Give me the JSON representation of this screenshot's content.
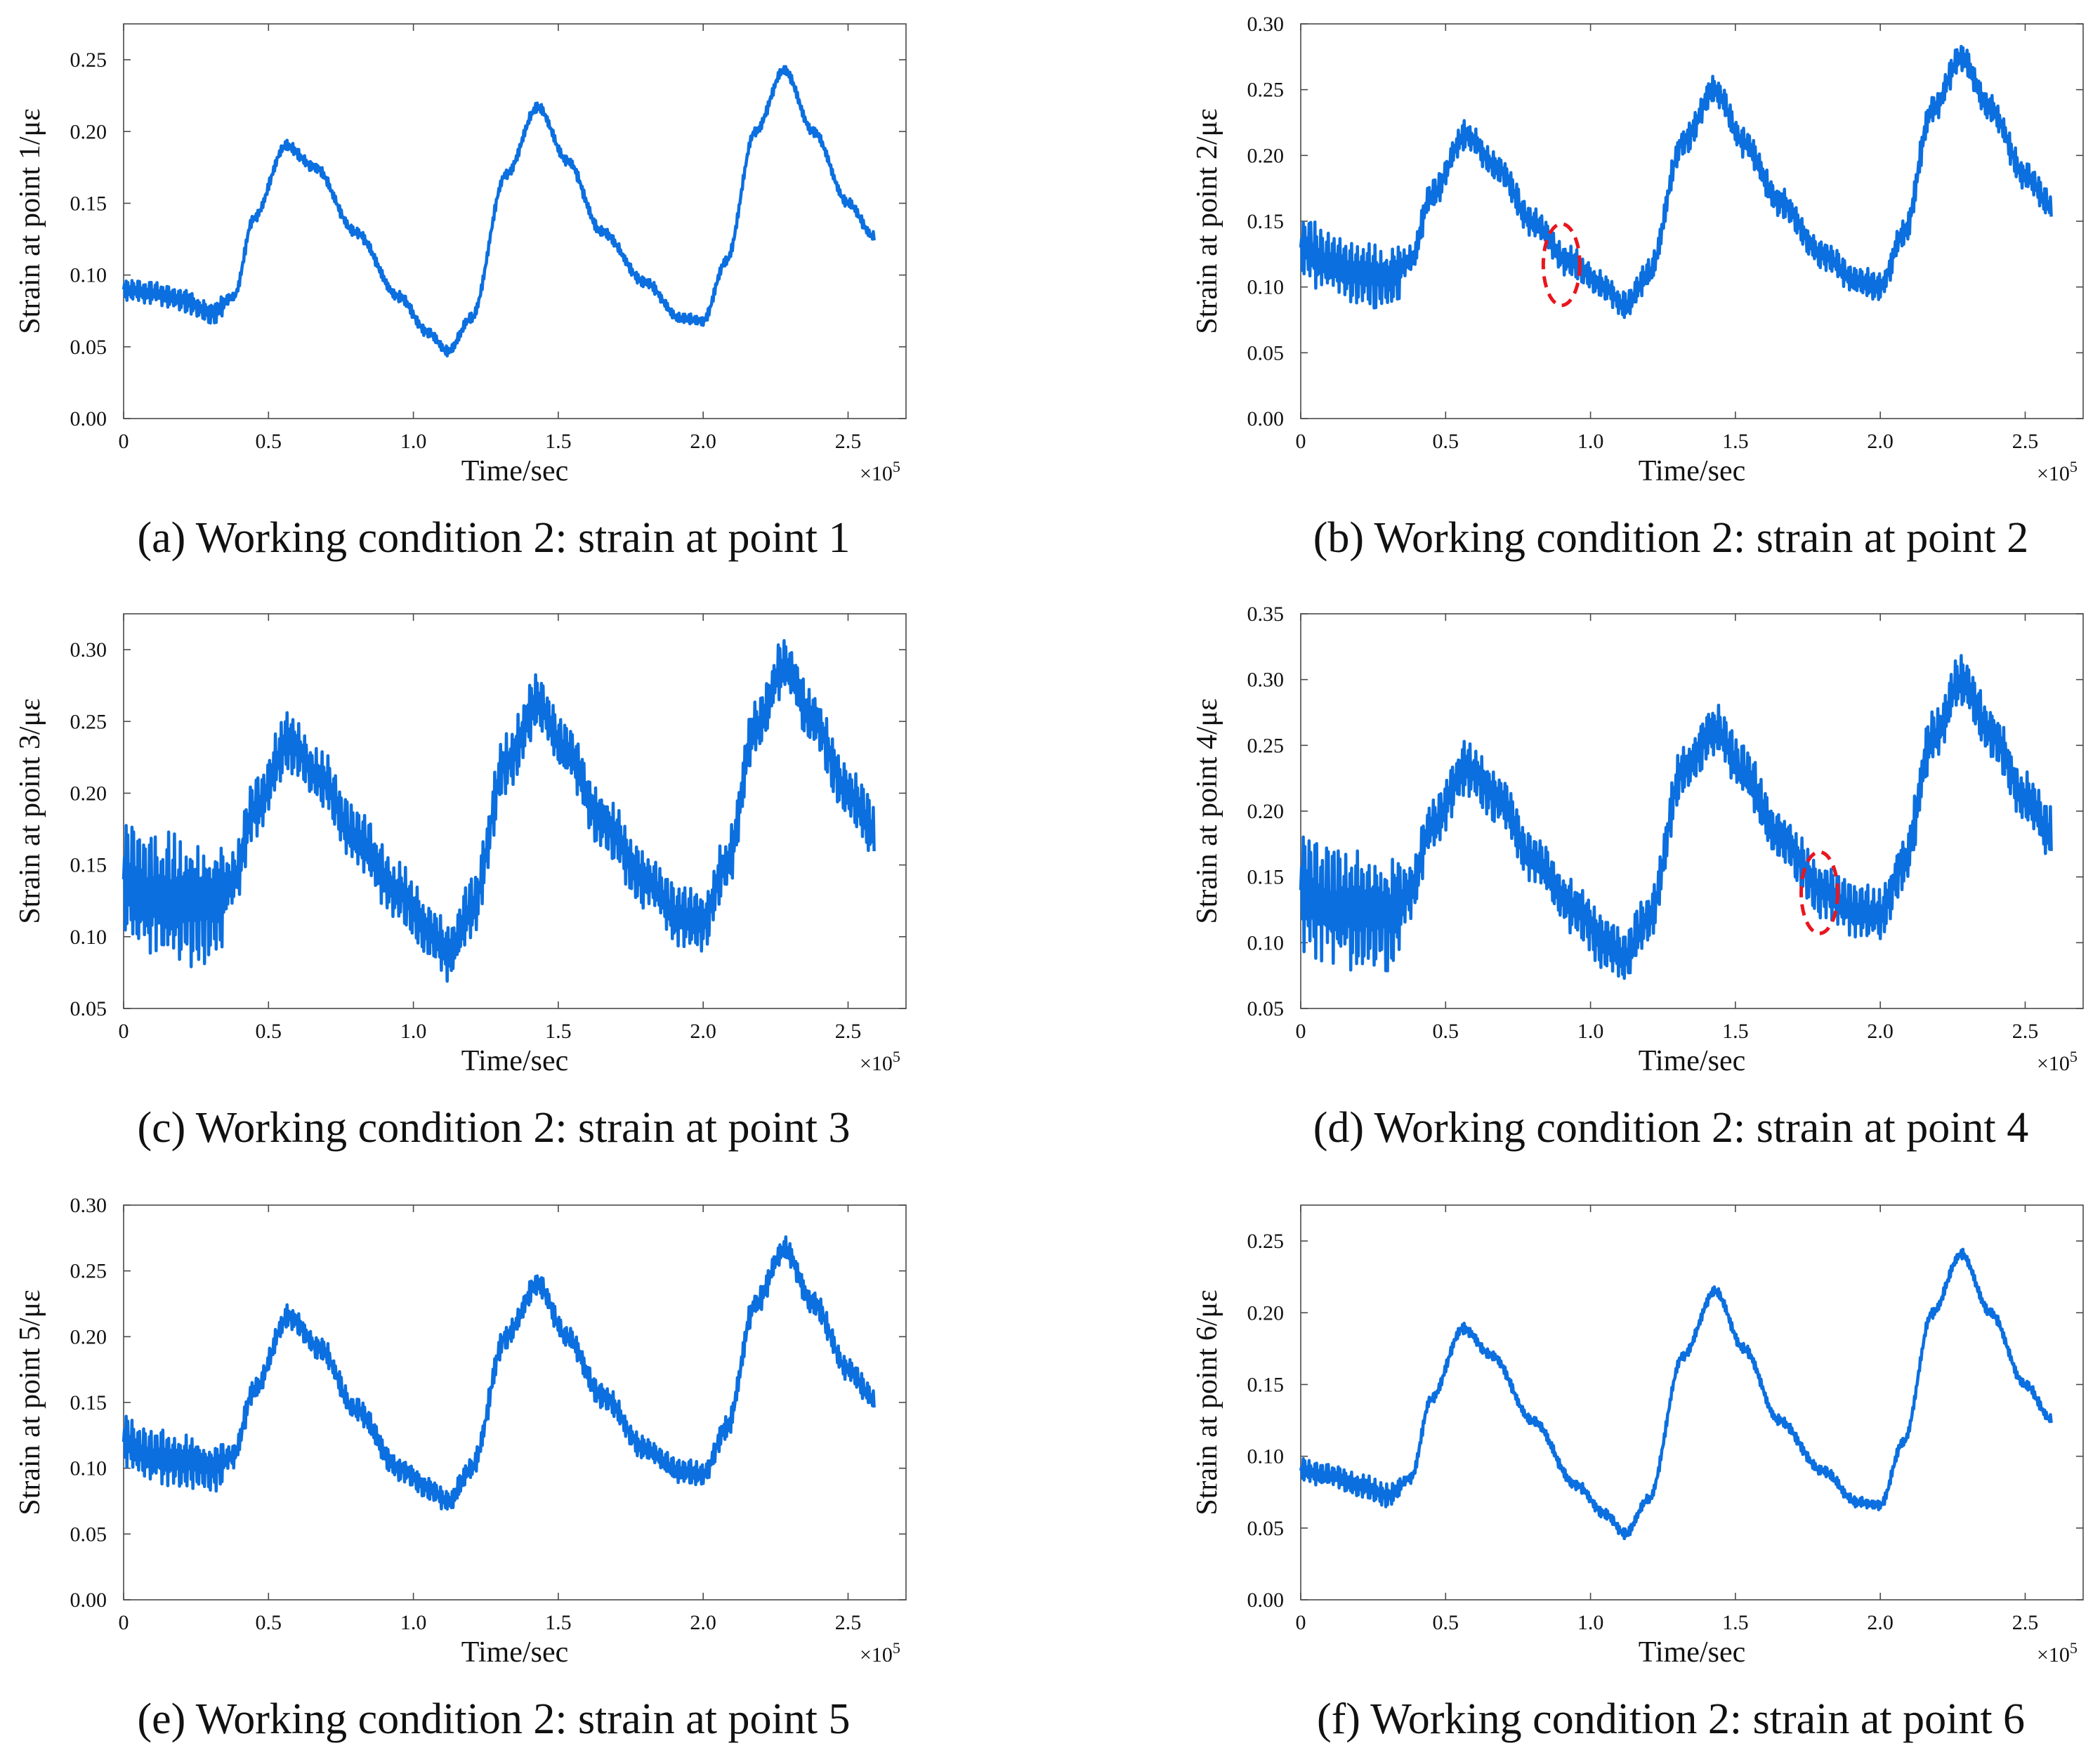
{
  "colors": {
    "series": "#0b6fe0",
    "marker": "#e8161e",
    "axis": "#4a4a4a"
  },
  "chart_data": [
    {
      "type": "line",
      "id": "a",
      "caption": "(a) Working condition 2: strain at point 1",
      "xlabel": "Time/sec",
      "ylabel": "Strain at point 1/με",
      "x_multiplier": "×10",
      "x_multiplier_exp": "5",
      "xlim": [
        0,
        2.7
      ],
      "ylim": [
        0,
        0.275
      ],
      "x_ticks": [
        0,
        0.5,
        1.0,
        1.5,
        2.0,
        2.5
      ],
      "x_tick_labels": [
        "0",
        "0.5",
        "1.0",
        "1.5",
        "2.0",
        "2.5"
      ],
      "y_ticks": [
        0,
        0.05,
        0.1,
        0.15,
        0.2,
        0.25
      ],
      "y_tick_labels": [
        "0.00",
        "0.05",
        "0.10",
        "0.15",
        "0.20",
        "0.25"
      ],
      "noise": 0.004,
      "series": [
        {
          "name": "strain at point 1",
          "x": [
            0,
            0.1,
            0.2,
            0.3,
            0.38,
            0.45,
            0.56,
            0.66,
            0.8,
            0.95,
            1.05,
            1.12,
            1.2,
            1.32,
            1.43,
            1.53,
            1.65,
            1.8,
            1.92,
            2.0,
            2.08,
            2.18,
            2.28,
            2.38,
            2.5,
            2.59
          ],
          "values": [
            0.09,
            0.088,
            0.083,
            0.073,
            0.085,
            0.14,
            0.19,
            0.175,
            0.13,
            0.085,
            0.06,
            0.047,
            0.07,
            0.17,
            0.217,
            0.18,
            0.13,
            0.095,
            0.07,
            0.068,
            0.11,
            0.2,
            0.243,
            0.2,
            0.15,
            0.127
          ]
        }
      ],
      "highlights": []
    },
    {
      "type": "line",
      "id": "b",
      "caption": "(b) Working condition 2: strain at point 2",
      "xlabel": "Time/sec",
      "ylabel": "Strain at point 2/με",
      "x_multiplier": "×10",
      "x_multiplier_exp": "5",
      "xlim": [
        0,
        2.7
      ],
      "ylim": [
        0,
        0.3
      ],
      "x_ticks": [
        0,
        0.5,
        1.0,
        1.5,
        2.0,
        2.5
      ],
      "x_tick_labels": [
        "0",
        "0.5",
        "1.0",
        "1.5",
        "2.0",
        "2.5"
      ],
      "y_ticks": [
        0,
        0.05,
        0.1,
        0.15,
        0.2,
        0.25,
        0.3
      ],
      "y_tick_labels": [
        "0.00",
        "0.05",
        "0.10",
        "0.15",
        "0.20",
        "0.25",
        "0.30"
      ],
      "noise": 0.012,
      "series": [
        {
          "name": "strain at point 2",
          "x": [
            0,
            0.1,
            0.2,
            0.3,
            0.38,
            0.45,
            0.57,
            0.68,
            0.8,
            0.92,
            1.05,
            1.12,
            1.2,
            1.32,
            1.43,
            1.53,
            1.65,
            1.8,
            1.92,
            2.0,
            2.08,
            2.18,
            2.28,
            2.38,
            2.5,
            2.59
          ],
          "values": [
            0.13,
            0.12,
            0.11,
            0.105,
            0.12,
            0.17,
            0.215,
            0.19,
            0.15,
            0.12,
            0.1,
            0.085,
            0.11,
            0.21,
            0.25,
            0.21,
            0.165,
            0.125,
            0.105,
            0.1,
            0.14,
            0.235,
            0.275,
            0.235,
            0.185,
            0.162
          ]
        }
      ],
      "highlights": [
        {
          "x": 0.9,
          "y": 0.117
        }
      ]
    },
    {
      "type": "line",
      "id": "c",
      "caption": "(c) Working condition 2: strain at point 3",
      "xlabel": "Time/sec",
      "ylabel": "Strain at point 3/με",
      "x_multiplier": "×10",
      "x_multiplier_exp": "5",
      "xlim": [
        0,
        2.7
      ],
      "ylim": [
        0.05,
        0.325
      ],
      "x_ticks": [
        0,
        0.5,
        1.0,
        1.5,
        2.0,
        2.5
      ],
      "x_tick_labels": [
        "0",
        "0.5",
        "1.0",
        "1.5",
        "2.0",
        "2.5"
      ],
      "y_ticks": [
        0.05,
        0.1,
        0.15,
        0.2,
        0.25,
        0.3
      ],
      "y_tick_labels": [
        "0.05",
        "0.10",
        "0.15",
        "0.20",
        "0.25",
        "0.30"
      ],
      "noise": 0.022,
      "series": [
        {
          "name": "strain at point 3",
          "x": [
            0,
            0.1,
            0.2,
            0.3,
            0.38,
            0.45,
            0.57,
            0.68,
            0.8,
            0.95,
            1.05,
            1.12,
            1.2,
            1.32,
            1.43,
            1.53,
            1.65,
            1.8,
            1.92,
            2.0,
            2.08,
            2.18,
            2.28,
            2.38,
            2.5,
            2.59
          ],
          "values": [
            0.14,
            0.13,
            0.125,
            0.12,
            0.14,
            0.19,
            0.235,
            0.21,
            0.17,
            0.13,
            0.105,
            0.09,
            0.12,
            0.22,
            0.262,
            0.23,
            0.18,
            0.14,
            0.115,
            0.11,
            0.15,
            0.245,
            0.29,
            0.25,
            0.2,
            0.175
          ]
        }
      ],
      "highlights": []
    },
    {
      "type": "line",
      "id": "d",
      "caption": "(d) Working condition 2: strain at point 4",
      "xlabel": "Time/sec",
      "ylabel": "Strain at point 4/με",
      "x_multiplier": "×10",
      "x_multiplier_exp": "5",
      "xlim": [
        0,
        2.7
      ],
      "ylim": [
        0.05,
        0.35
      ],
      "x_ticks": [
        0,
        0.5,
        1.0,
        1.5,
        2.0,
        2.5
      ],
      "x_tick_labels": [
        "0",
        "0.5",
        "1.0",
        "1.5",
        "2.0",
        "2.5"
      ],
      "y_ticks": [
        0.05,
        0.1,
        0.15,
        0.2,
        0.25,
        0.3,
        0.35
      ],
      "y_tick_labels": [
        "0.05",
        "0.10",
        "0.15",
        "0.20",
        "0.25",
        "0.30",
        "0.35"
      ],
      "noise": 0.022,
      "series": [
        {
          "name": "strain at point 4",
          "x": [
            0,
            0.1,
            0.2,
            0.3,
            0.38,
            0.45,
            0.57,
            0.68,
            0.8,
            0.95,
            1.05,
            1.12,
            1.2,
            1.32,
            1.43,
            1.53,
            1.65,
            1.8,
            1.92,
            2.0,
            2.08,
            2.18,
            2.28,
            2.38,
            2.5,
            2.59
          ],
          "values": [
            0.14,
            0.13,
            0.125,
            0.12,
            0.14,
            0.19,
            0.232,
            0.21,
            0.165,
            0.125,
            0.1,
            0.09,
            0.12,
            0.23,
            0.262,
            0.23,
            0.18,
            0.14,
            0.125,
            0.12,
            0.16,
            0.255,
            0.3,
            0.26,
            0.21,
            0.185
          ]
        }
      ],
      "highlights": [
        {
          "x": 1.79,
          "y": 0.138
        }
      ]
    },
    {
      "type": "line",
      "id": "e",
      "caption": "(e) Working condition 2: strain at point 5",
      "xlabel": "Time/sec",
      "ylabel": "Strain at point 5/με",
      "x_multiplier": "×10",
      "x_multiplier_exp": "5",
      "xlim": [
        0,
        2.7
      ],
      "ylim": [
        0,
        0.3
      ],
      "x_ticks": [
        0,
        0.5,
        1.0,
        1.5,
        2.0,
        2.5
      ],
      "x_tick_labels": [
        "0",
        "0.5",
        "1.0",
        "1.5",
        "2.0",
        "2.5"
      ],
      "y_ticks": [
        0,
        0.05,
        0.1,
        0.15,
        0.2,
        0.25,
        0.3
      ],
      "y_tick_labels": [
        "0.00",
        "0.05",
        "0.10",
        "0.15",
        "0.20",
        "0.25",
        "0.30"
      ],
      "noise": 0.01,
      "series": [
        {
          "name": "strain at point 5",
          "x": [
            0,
            0.1,
            0.2,
            0.3,
            0.38,
            0.45,
            0.57,
            0.68,
            0.8,
            0.95,
            1.05,
            1.12,
            1.2,
            1.32,
            1.43,
            1.53,
            1.65,
            1.8,
            1.92,
            2.0,
            2.08,
            2.18,
            2.28,
            2.38,
            2.5,
            2.59
          ],
          "values": [
            0.12,
            0.11,
            0.105,
            0.1,
            0.11,
            0.16,
            0.215,
            0.19,
            0.145,
            0.1,
            0.085,
            0.075,
            0.1,
            0.2,
            0.24,
            0.2,
            0.155,
            0.115,
            0.098,
            0.095,
            0.13,
            0.225,
            0.267,
            0.225,
            0.175,
            0.153
          ]
        }
      ],
      "highlights": []
    },
    {
      "type": "line",
      "id": "f",
      "caption": "(f) Working condition 2: strain at point 6",
      "xlabel": "Time/sec",
      "ylabel": "Strain at point 6/με",
      "x_multiplier": "×10",
      "x_multiplier_exp": "5",
      "xlim": [
        0,
        2.7
      ],
      "ylim": [
        0,
        0.275
      ],
      "x_ticks": [
        0,
        0.5,
        1.0,
        1.5,
        2.0,
        2.5
      ],
      "x_tick_labels": [
        "0",
        "0.5",
        "1.0",
        "1.5",
        "2.0",
        "2.5"
      ],
      "y_ticks": [
        0,
        0.05,
        0.1,
        0.15,
        0.2,
        0.25
      ],
      "y_tick_labels": [
        "0.00",
        "0.05",
        "0.10",
        "0.15",
        "0.20",
        "0.25"
      ],
      "noise": 0.004,
      "series": [
        {
          "name": "strain at point 6",
          "x": [
            0,
            0.1,
            0.2,
            0.3,
            0.38,
            0.45,
            0.56,
            0.66,
            0.8,
            0.95,
            1.05,
            1.12,
            1.2,
            1.32,
            1.43,
            1.53,
            1.65,
            1.8,
            1.92,
            2.0,
            2.08,
            2.18,
            2.28,
            2.38,
            2.5,
            2.59
          ],
          "values": [
            0.09,
            0.087,
            0.08,
            0.072,
            0.085,
            0.14,
            0.189,
            0.17,
            0.125,
            0.08,
            0.06,
            0.046,
            0.07,
            0.17,
            0.215,
            0.175,
            0.125,
            0.09,
            0.068,
            0.066,
            0.11,
            0.2,
            0.241,
            0.2,
            0.15,
            0.126
          ]
        }
      ],
      "highlights": []
    }
  ]
}
